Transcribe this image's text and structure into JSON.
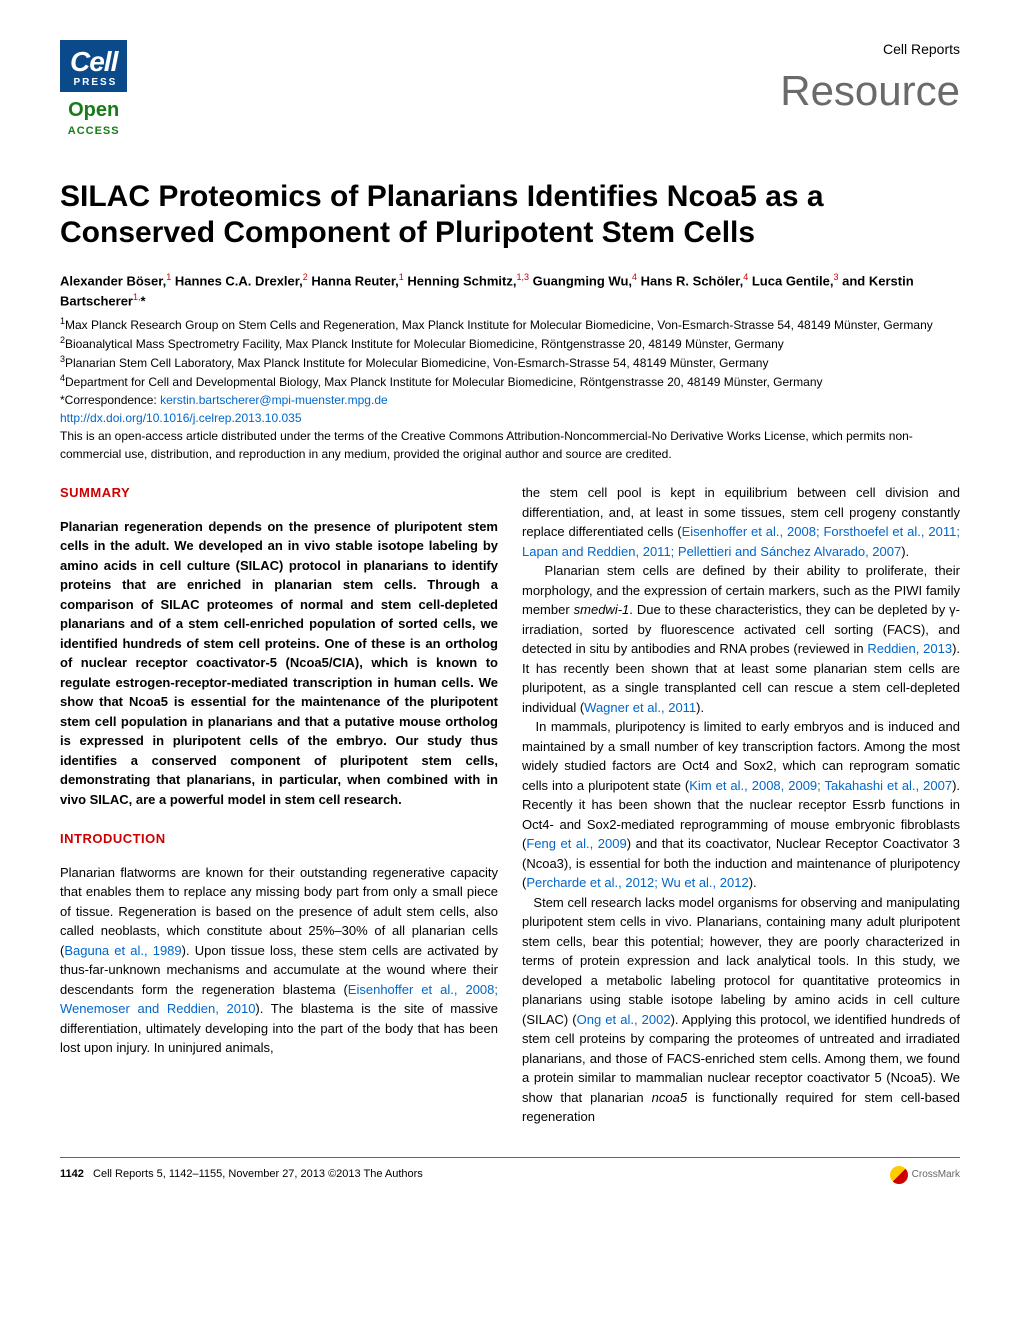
{
  "header": {
    "logo_cell": "Cell",
    "logo_press": "PRESS",
    "open": "Open",
    "access": "ACCESS",
    "journal": "Cell Reports",
    "section": "Resource"
  },
  "title": "SILAC Proteomics of Planarians Identifies Ncoa5 as a Conserved Component of Pluripotent Stem Cells",
  "authors_html": "Alexander Böser,<sup class='sup-red'>1</sup> Hannes C.A. Drexler,<sup class='sup-red'>2</sup> Hanna Reuter,<sup class='sup-red'>1</sup> Henning Schmitz,<sup class='sup-red'>1,3</sup> Guangming Wu,<sup class='sup-red'>4</sup> Hans R. Schöler,<sup class='sup-red'>4</sup> Luca Gentile,<sup class='sup-red'>3</sup> and Kerstin Bartscherer<sup class='sup-red'>1,</sup>*",
  "affiliations_html": "<sup>1</sup>Max Planck Research Group on Stem Cells and Regeneration, Max Planck Institute for Molecular Biomedicine, Von-Esmarch-Strasse 54, 48149 Münster, Germany<br><sup>2</sup>Bioanalytical Mass Spectrometry Facility, Max Planck Institute for Molecular Biomedicine, Röntgenstrasse 20, 48149 Münster, Germany<br><sup>3</sup>Planarian Stem Cell Laboratory, Max Planck Institute for Molecular Biomedicine, Von-Esmarch-Strasse 54, 48149 Münster, Germany<br><sup>4</sup>Department for Cell and Developmental Biology, Max Planck Institute for Molecular Biomedicine, Röntgenstrasse 20, 48149 Münster, Germany<br>*Correspondence: <a href='#'>kerstin.bartscherer@mpi-muenster.mpg.de</a><br><a href='#'>http://dx.doi.org/10.1016/j.celrep.2013.10.035</a><br>This is an open-access article distributed under the terms of the Creative Commons Attribution-Noncommercial-No Derivative Works License, which permits non-commercial use, distribution, and reproduction in any medium, provided the original author and source are credited.",
  "summary_heading": "SUMMARY",
  "summary_text": "Planarian regeneration depends on the presence of pluripotent stem cells in the adult. We developed an in vivo stable isotope labeling by amino acids in cell culture (SILAC) protocol in planarians to identify proteins that are enriched in planarian stem cells. Through a comparison of SILAC proteomes of normal and stem cell-depleted planarians and of a stem cell-enriched population of sorted cells, we identified hundreds of stem cell proteins. One of these is an ortholog of nuclear receptor coactivator-5 (Ncoa5/CIA), which is known to regulate estrogen-receptor-mediated transcription in human cells. We show that Ncoa5 is essential for the maintenance of the pluripotent stem cell population in planarians and that a putative mouse ortholog is expressed in pluripotent cells of the embryo. Our study thus identifies a conserved component of pluripotent stem cells, demonstrating that planarians, in particular, when combined with in vivo SILAC, are a powerful model in stem cell research.",
  "intro_heading": "INTRODUCTION",
  "intro_left_html": "Planarian flatworms are known for their outstanding regenerative capacity that enables them to replace any missing body part from only a small piece of tissue. Regeneration is based on the presence of adult stem cells, also called neoblasts, which constitute about 25%–30% of all planarian cells (<span class='ref-link'>Baguna et al., 1989</span>). Upon tissue loss, these stem cells are activated by thus-far-unknown mechanisms and accumulate at the wound where their descendants form the regeneration blastema (<span class='ref-link'>Eisenhoffer et al., 2008; Wenemoser and Reddien, 2010</span>). The blastema is the site of massive differentiation, ultimately developing into the part of the body that has been lost upon injury. In uninjured animals,",
  "right_col_html": "the stem cell pool is kept in equilibrium between cell division and differentiation, and, at least in some tissues, stem cell progeny constantly replace differentiated cells (<span class='ref-link'>Eisenhoffer et al., 2008; Forsthoefel et al., 2011; Lapan and Reddien, 2011; Pellettieri and Sánchez Alvarado, 2007</span>).<br>&nbsp;&nbsp;&nbsp;Planarian stem cells are defined by their ability to proliferate, their morphology, and the expression of certain markers, such as the PIWI family member <span class='italic'>smedwi-1</span>. Due to these characteristics, they can be depleted by γ-irradiation, sorted by fluorescence activated cell sorting (FACS), and detected in situ by antibodies and RNA probes (reviewed in <span class='ref-link'>Reddien, 2013</span>). It has recently been shown that at least some planarian stem cells are pluripotent, as a single transplanted cell can rescue a stem cell-depleted individual (<span class='ref-link'>Wagner et al., 2011</span>).<br>&nbsp;&nbsp;&nbsp;In mammals, pluripotency is limited to early embryos and is induced and maintained by a small number of key transcription factors. Among the most widely studied factors are Oct4 and Sox2, which can reprogram somatic cells into a pluripotent state (<span class='ref-link'>Kim et al., 2008, 2009; Takahashi et al., 2007</span>). Recently it has been shown that the nuclear receptor Essrb functions in Oct4- and Sox2-mediated reprogramming of mouse embryonic fibroblasts (<span class='ref-link'>Feng et al., 2009</span>) and that its coactivator, Nuclear Receptor Coactivator 3 (Ncoa3), is essential for both the induction and maintenance of pluripotency (<span class='ref-link'>Percharde et al., 2012; Wu et al., 2012</span>).<br>&nbsp;&nbsp;&nbsp;Stem cell research lacks model organisms for observing and manipulating pluripotent stem cells in vivo. Planarians, containing many adult pluripotent stem cells, bear this potential; however, they are poorly characterized in terms of protein expression and lack analytical tools. In this study, we developed a metabolic labeling protocol for quantitative proteomics in planarians using stable isotope labeling by amino acids in cell culture (SILAC) (<span class='ref-link'>Ong et al., 2002</span>). Applying this protocol, we identified hundreds of stem cell proteins by comparing the proteomes of untreated and irradiated planarians, and those of FACS-enriched stem cells. Among them, we found a protein similar to mammalian nuclear receptor coactivator 5 (Ncoa5). We show that planarian <span class='italic'>ncoa5</span> is functionally required for stem cell-based regeneration",
  "footer": {
    "page": "1142",
    "citation": "Cell Reports 5, 1142–1155, November 27, 2013 ©2013 The Authors",
    "crossmark": "CrossMark"
  },
  "colors": {
    "logo_bg": "#0a4a8a",
    "green": "#1a7a1a",
    "heading_red": "#cc0000",
    "link_blue": "#0066cc",
    "resource_gray": "#6a6a6a"
  }
}
